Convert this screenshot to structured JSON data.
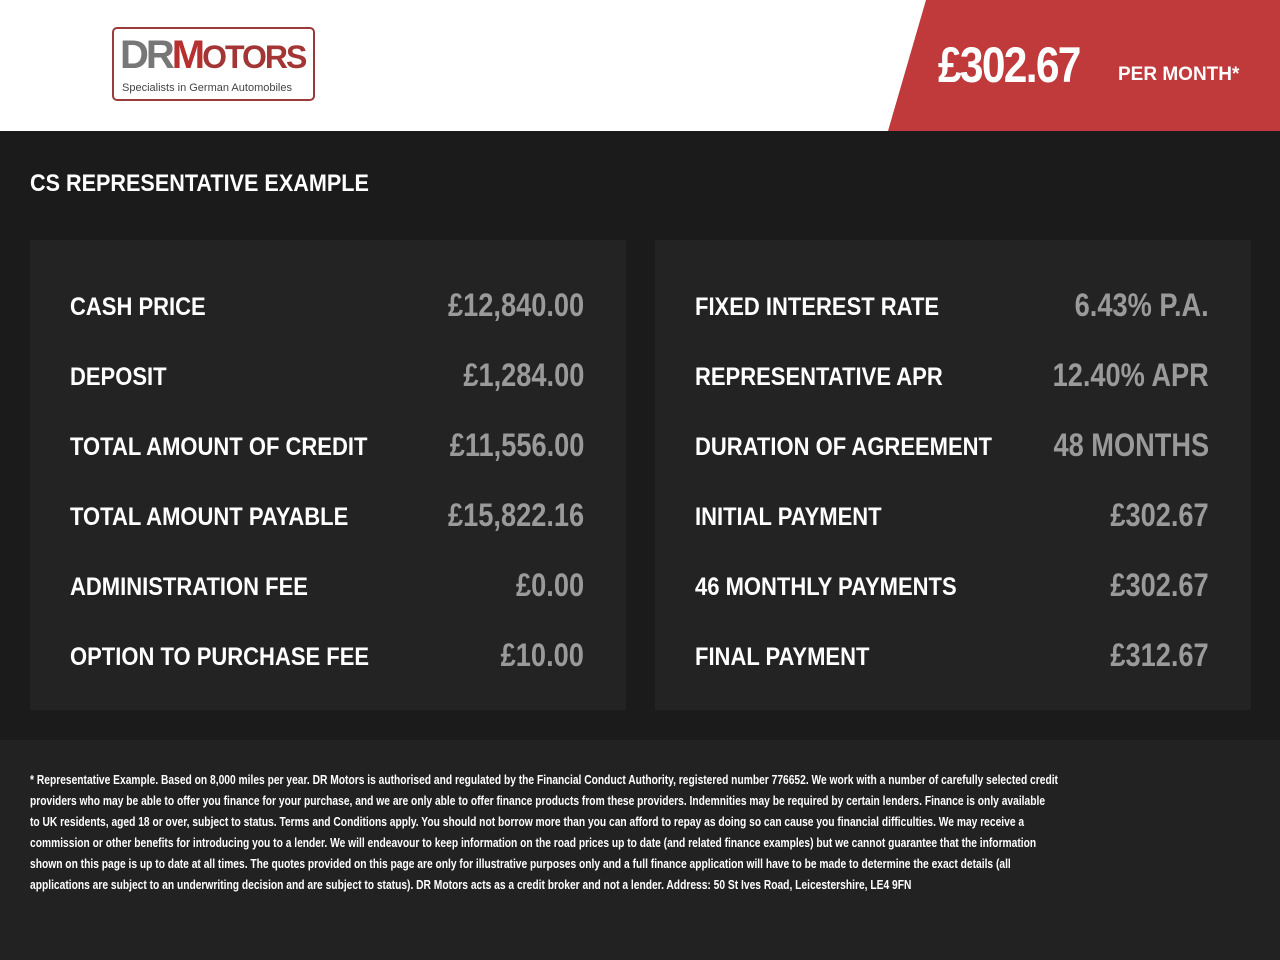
{
  "brand": {
    "logo_text": "DRMotors",
    "tagline": "Specialists in German Automobiles",
    "colors": {
      "accent": "#c0393b",
      "panel": "#232323",
      "background": "#1b1b1b"
    }
  },
  "header": {
    "price": "£302.67",
    "per_month": "PER MONTH*"
  },
  "section_title": "CS REPRESENTATIVE EXAMPLE",
  "left_panel": [
    {
      "label": "CASH PRICE",
      "value": "£12,840.00"
    },
    {
      "label": "DEPOSIT",
      "value": "£1,284.00"
    },
    {
      "label": "TOTAL AMOUNT OF CREDIT",
      "value": "£11,556.00"
    },
    {
      "label": "TOTAL AMOUNT PAYABLE",
      "value": "£15,822.16"
    },
    {
      "label": "ADMINISTRATION FEE",
      "value": "£0.00"
    },
    {
      "label": "OPTION TO PURCHASE FEE",
      "value": "£10.00"
    }
  ],
  "right_panel": [
    {
      "label": "FIXED INTEREST RATE",
      "value": "6.43% P.A."
    },
    {
      "label": "REPRESENTATIVE APR",
      "value": "12.40% APR"
    },
    {
      "label": "DURATION OF AGREEMENT",
      "value": "48 MONTHS"
    },
    {
      "label": "INITIAL PAYMENT",
      "value": "£302.67"
    },
    {
      "label": "46 MONTHLY PAYMENTS",
      "value": "£302.67"
    },
    {
      "label": "FINAL PAYMENT",
      "value": "£312.67"
    }
  ],
  "footer_lines": [
    "* Representative Example. Based on 8,000 miles per year. DR Motors is authorised and regulated by the Financial Conduct Authority, registered number 776652. We work with a number of carefully selected credit",
    "providers who may be able to offer you finance for your purchase, and we are only able to offer finance products from these providers. Indemnities may be required by certain lenders. Finance is only available",
    "to UK residents, aged 18 or over, subject to status. Terms and Conditions apply. You should not borrow more than you can afford to repay as doing so can cause you financial difficulties. We may receive a",
    "commission or other benefits for introducing you to a lender. We will endeavour to keep information on the road prices up to date (and related finance examples) but we cannot guarantee that the information",
    "shown on this page is up to date at all times. The quotes provided on this page are only for illustrative purposes only and a full finance application will have to be made to determine the exact details (all",
    "applications are subject to an underwriting decision and are subject to status). DR Motors acts as a credit broker and not a lender. Address: 50 St Ives Road, Leicestershire, LE4 9FN"
  ]
}
